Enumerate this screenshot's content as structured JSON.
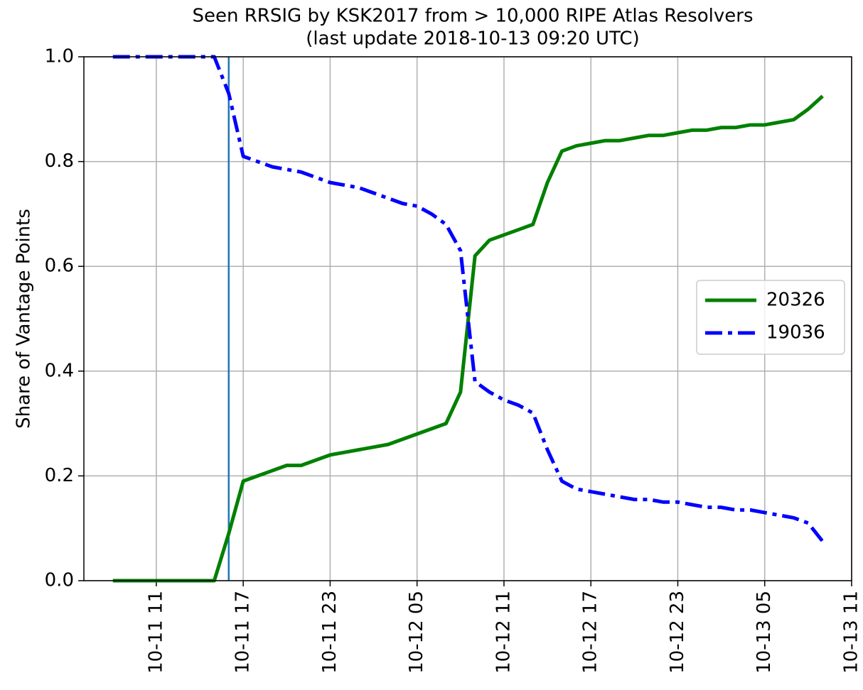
{
  "chart_data": {
    "type": "line",
    "title": "Seen RRSIG by KSK2017 from > 10,000 RIPE Atlas Resolvers",
    "subtitle": "(last update 2018-10-13 09:20 UTC)",
    "y_label": "Share of Vantage Points",
    "x": [
      "10-11 08",
      "10-11 09",
      "10-11 10",
      "10-11 11",
      "10-11 12",
      "10-11 13",
      "10-11 14",
      "10-11 15",
      "10-11 16",
      "10-11 17",
      "10-11 18",
      "10-11 19",
      "10-11 20",
      "10-11 21",
      "10-11 22",
      "10-11 23",
      "10-12 00",
      "10-12 01",
      "10-12 02",
      "10-12 03",
      "10-12 04",
      "10-12 05",
      "10-12 06",
      "10-12 07",
      "10-12 08",
      "10-12 09",
      "10-12 10",
      "10-12 11",
      "10-12 12",
      "10-12 13",
      "10-12 14",
      "10-12 15",
      "10-12 16",
      "10-12 17",
      "10-12 18",
      "10-12 19",
      "10-12 20",
      "10-12 21",
      "10-12 22",
      "10-12 23",
      "10-13 00",
      "10-13 01",
      "10-13 02",
      "10-13 03",
      "10-13 04",
      "10-13 05",
      "10-13 06",
      "10-13 07",
      "10-13 08",
      "10-13 09"
    ],
    "series": [
      {
        "name": "20326",
        "color": "#008000",
        "style": "solid",
        "values": [
          0,
          0,
          0,
          0,
          0,
          0,
          0,
          0,
          0.09,
          0.19,
          0.2,
          0.21,
          0.22,
          0.22,
          0.23,
          0.24,
          0.245,
          0.25,
          0.255,
          0.26,
          0.27,
          0.28,
          0.29,
          0.3,
          0.36,
          0.62,
          0.65,
          0.66,
          0.67,
          0.68,
          0.76,
          0.82,
          0.83,
          0.835,
          0.84,
          0.84,
          0.845,
          0.85,
          0.85,
          0.855,
          0.86,
          0.86,
          0.865,
          0.865,
          0.87,
          0.87,
          0.875,
          0.88,
          0.9,
          0.925
        ]
      },
      {
        "name": "19036",
        "color": "#0000ff",
        "style": "dashdot",
        "values": [
          1,
          1,
          1,
          1,
          1,
          1,
          1,
          1,
          0.93,
          0.81,
          0.8,
          0.79,
          0.785,
          0.78,
          0.77,
          0.76,
          0.755,
          0.75,
          0.74,
          0.73,
          0.72,
          0.715,
          0.7,
          0.68,
          0.63,
          0.38,
          0.36,
          0.345,
          0.335,
          0.32,
          0.25,
          0.19,
          0.175,
          0.17,
          0.165,
          0.16,
          0.155,
          0.155,
          0.15,
          0.15,
          0.145,
          0.14,
          0.14,
          0.135,
          0.135,
          0.13,
          0.125,
          0.12,
          0.11,
          0.075
        ]
      }
    ],
    "vlines": [
      {
        "x": "10-11 16",
        "color": "#1f77b4"
      }
    ],
    "xlim": [
      "10-11 06",
      "10-13 11"
    ],
    "xticks": [
      "10-11 11",
      "10-11 17",
      "10-11 23",
      "10-12 05",
      "10-12 11",
      "10-12 17",
      "10-12 23",
      "10-13 05",
      "10-13 11"
    ],
    "ylim": [
      0,
      1
    ],
    "yticks": [
      {
        "value": 0,
        "label": "0.0"
      },
      0.2,
      0.4,
      0.6,
      0.8,
      {
        "value": 1,
        "label": "1.0"
      }
    ],
    "grid": true,
    "legend": "center right"
  }
}
